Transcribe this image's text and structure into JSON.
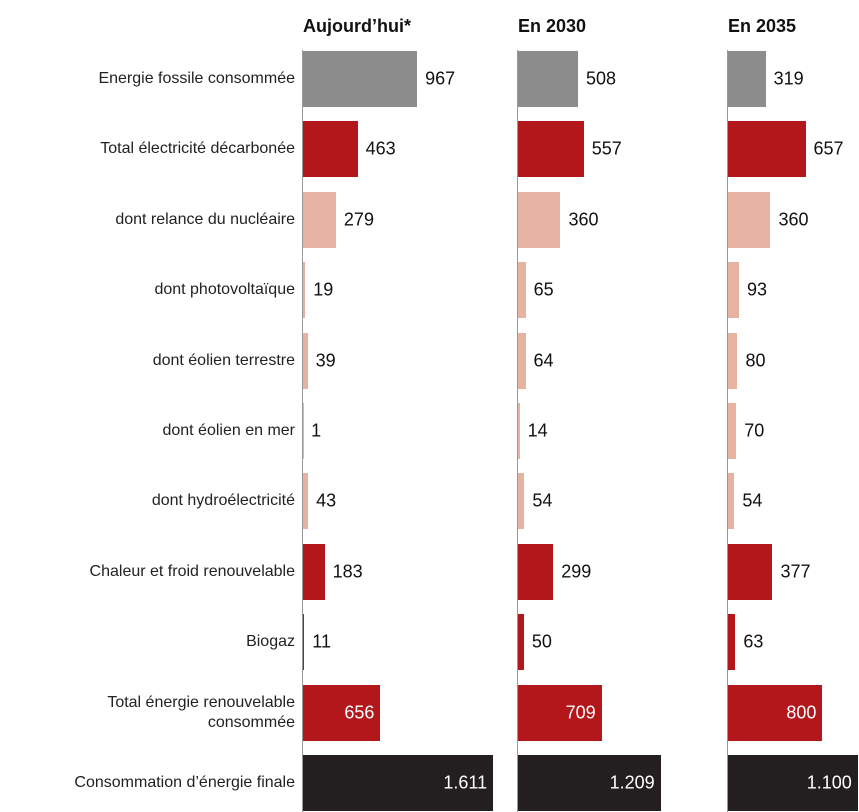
{
  "chart_data": {
    "type": "bar",
    "orientation": "horizontal",
    "categories": [
      "Energie fossile consommée",
      "Total électricité décarbonée",
      "dont relance du nucléaire",
      "dont photovoltaïque",
      "dont éolien terrestre",
      "dont éolien en mer",
      "dont hydroélectricité",
      "Chaleur et froid renouvelable",
      "Biogaz",
      "Total énergie renouvelable\nconsommée",
      "Consommation d’énergie finale"
    ],
    "colors": [
      "#8c8c8c",
      "#b3161b",
      "#e6b3a3",
      "#e6b3a3",
      "#e6b3a3",
      "#e6b3a3",
      "#e6b3a3",
      "#b3161b",
      "#b3161b",
      "#b3161b",
      "#231f20"
    ],
    "series": [
      {
        "name": "Aujourd’hui*",
        "values": [
          967,
          463,
          279,
          19,
          39,
          1,
          43,
          183,
          11,
          656,
          1611
        ],
        "value_labels": [
          "967",
          "463",
          "279",
          "19",
          "39",
          "1",
          "43",
          "183",
          "11",
          "656",
          "1.611"
        ]
      },
      {
        "name": "En 2030",
        "values": [
          508,
          557,
          360,
          65,
          64,
          14,
          54,
          299,
          50,
          709,
          1209
        ],
        "value_labels": [
          "508",
          "557",
          "360",
          "65",
          "64",
          "14",
          "54",
          "299",
          "50",
          "709",
          "1.209"
        ]
      },
      {
        "name": "En 2035",
        "values": [
          319,
          657,
          360,
          93,
          80,
          70,
          54,
          377,
          63,
          800,
          1100
        ],
        "value_labels": [
          "319",
          "657",
          "360",
          "93",
          "80",
          "70",
          "54",
          "377",
          "63",
          "800",
          "1.100"
        ]
      }
    ]
  }
}
